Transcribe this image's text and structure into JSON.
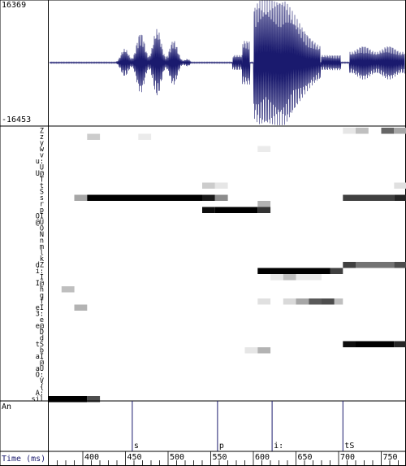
{
  "waveform": {
    "y_max_label": "16369",
    "y_min_label": "-16453",
    "color": "#1a1a6e"
  },
  "phoneme_labels": [
    "Z",
    "z",
    "y",
    "w",
    "v",
    "u:",
    "U",
    "U@",
    "T",
    "t",
    "S",
    "s",
    "r",
    "p",
    "OI",
    "@U",
    "O",
    "N",
    "n",
    "m",
    "l",
    "k",
    "dZ",
    "i:",
    "I",
    "I@",
    "h",
    "g",
    "f",
    "eI",
    "3:",
    "e",
    "e@",
    "D",
    "d",
    "tS",
    "b",
    "aI",
    "@",
    "aU",
    "O:",
    "V",
    "{",
    "A:",
    "sil"
  ],
  "posteriogram": {
    "frame_ms": 10,
    "t_start_ms": 360,
    "cells": [
      {
        "p": "sil",
        "t0": 360,
        "t1": 405,
        "v": 1.0
      },
      {
        "p": "sil",
        "t0": 405,
        "t1": 420,
        "v": 0.7
      },
      {
        "p": "s",
        "t0": 390,
        "t1": 405,
        "v": 0.35
      },
      {
        "p": "s",
        "t0": 405,
        "t1": 540,
        "v": 1.0
      },
      {
        "p": "s",
        "t0": 540,
        "t1": 555,
        "v": 0.9
      },
      {
        "p": "s",
        "t0": 555,
        "t1": 570,
        "v": 0.45
      },
      {
        "p": "z",
        "t0": 405,
        "t1": 420,
        "v": 0.2
      },
      {
        "p": "z",
        "t0": 465,
        "t1": 480,
        "v": 0.08
      },
      {
        "p": "t",
        "t0": 540,
        "t1": 555,
        "v": 0.2
      },
      {
        "p": "t",
        "t0": 555,
        "t1": 570,
        "v": 0.1
      },
      {
        "p": "h",
        "t0": 375,
        "t1": 390,
        "v": 0.25
      },
      {
        "p": "eI",
        "t0": 390,
        "t1": 405,
        "v": 0.3
      },
      {
        "p": "p",
        "t0": 540,
        "t1": 555,
        "v": 0.95
      },
      {
        "p": "p",
        "t0": 555,
        "t1": 605,
        "v": 1.0
      },
      {
        "p": "p",
        "t0": 605,
        "t1": 620,
        "v": 0.8
      },
      {
        "p": "r",
        "t0": 605,
        "t1": 620,
        "v": 0.3
      },
      {
        "p": "w",
        "t0": 605,
        "t1": 620,
        "v": 0.08
      },
      {
        "p": "b",
        "t0": 590,
        "t1": 605,
        "v": 0.1
      },
      {
        "p": "b",
        "t0": 605,
        "t1": 620,
        "v": 0.3
      },
      {
        "p": "i:",
        "t0": 605,
        "t1": 690,
        "v": 1.0
      },
      {
        "p": "i:",
        "t0": 690,
        "t1": 705,
        "v": 0.75
      },
      {
        "p": "I",
        "t0": 620,
        "t1": 635,
        "v": 0.1
      },
      {
        "p": "I",
        "t0": 635,
        "t1": 650,
        "v": 0.25
      },
      {
        "p": "I",
        "t0": 650,
        "t1": 680,
        "v": 0.08
      },
      {
        "p": "f",
        "t0": 605,
        "t1": 620,
        "v": 0.12
      },
      {
        "p": "f",
        "t0": 635,
        "t1": 650,
        "v": 0.15
      },
      {
        "p": "f",
        "t0": 650,
        "t1": 665,
        "v": 0.35
      },
      {
        "p": "f",
        "t0": 665,
        "t1": 680,
        "v": 0.65
      },
      {
        "p": "f",
        "t0": 680,
        "t1": 695,
        "v": 0.7
      },
      {
        "p": "f",
        "t0": 695,
        "t1": 705,
        "v": 0.25
      },
      {
        "p": "dZ",
        "t0": 705,
        "t1": 720,
        "v": 0.75
      },
      {
        "p": "dZ",
        "t0": 720,
        "t1": 765,
        "v": 0.55
      },
      {
        "p": "dZ",
        "t0": 765,
        "t1": 790,
        "v": 0.7
      },
      {
        "p": "s",
        "t0": 705,
        "t1": 765,
        "v": 0.75
      },
      {
        "p": "s",
        "t0": 765,
        "t1": 780,
        "v": 0.85
      },
      {
        "p": "s",
        "t0": 780,
        "t1": 790,
        "v": 1.0
      },
      {
        "p": "tS",
        "t0": 705,
        "t1": 720,
        "v": 0.95
      },
      {
        "p": "tS",
        "t0": 720,
        "t1": 765,
        "v": 1.0
      },
      {
        "p": "tS",
        "t0": 765,
        "t1": 780,
        "v": 0.85
      },
      {
        "p": "tS",
        "t0": 780,
        "t1": 790,
        "v": 0.6
      },
      {
        "p": "Z",
        "t0": 705,
        "t1": 720,
        "v": 0.1
      },
      {
        "p": "Z",
        "t0": 720,
        "t1": 735,
        "v": 0.25
      },
      {
        "p": "Z",
        "t0": 750,
        "t1": 765,
        "v": 0.6
      },
      {
        "p": "Z",
        "t0": 765,
        "t1": 790,
        "v": 0.35
      },
      {
        "p": "y",
        "t0": 780,
        "t1": 790,
        "v": 0.65
      },
      {
        "p": "t",
        "t0": 765,
        "t1": 780,
        "v": 0.12
      }
    ]
  },
  "annotation": {
    "tier_label": "An",
    "segments": [
      {
        "label": "s",
        "boundary_ms": 458
      },
      {
        "label": "p",
        "boundary_ms": 558
      },
      {
        "label": "i:",
        "boundary_ms": 622
      },
      {
        "label": "tS",
        "boundary_ms": 705
      }
    ]
  },
  "time_axis": {
    "label": "Time (ms)",
    "tick_labels": [
      "400",
      "450",
      "500",
      "550",
      "600",
      "650",
      "700",
      "750"
    ]
  }
}
